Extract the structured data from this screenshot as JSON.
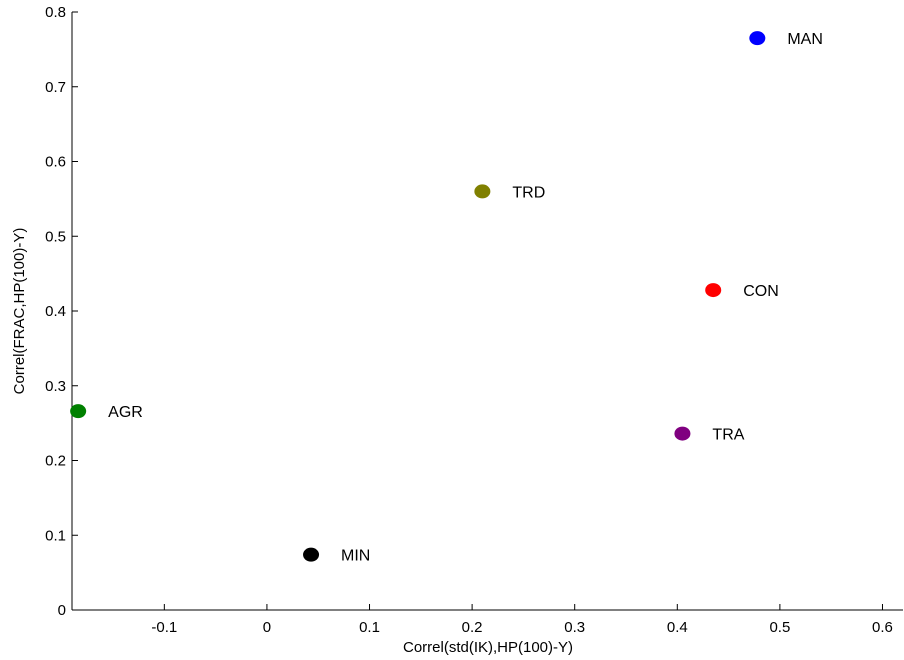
{
  "chart_data": {
    "type": "scatter",
    "title": "",
    "xlabel": "Correl(std(IK),HP(100)-Y)",
    "ylabel": "Correl(FRAC,HP(100)-Y)",
    "xlim": [
      -0.19,
      0.62
    ],
    "ylim": [
      0,
      0.8
    ],
    "xticks": [
      -0.1,
      0,
      0.1,
      0.2,
      0.3,
      0.4,
      0.5,
      0.6
    ],
    "xtick_labels": [
      "-0.1",
      "0",
      "0.1",
      "0.2",
      "0.3",
      "0.4",
      "0.5",
      "0.6"
    ],
    "yticks": [
      0,
      0.1,
      0.2,
      0.3,
      0.4,
      0.5,
      0.6,
      0.7,
      0.8
    ],
    "ytick_labels": [
      "0",
      "0.1",
      "0.2",
      "0.3",
      "0.4",
      "0.5",
      "0.6",
      "0.7",
      "0.8"
    ],
    "grid": false,
    "points": [
      {
        "label": "MAN",
        "x": 0.478,
        "y": 0.765,
        "color": "#0000ff"
      },
      {
        "label": "TRD",
        "x": 0.21,
        "y": 0.56,
        "color": "#808000"
      },
      {
        "label": "CON",
        "x": 0.435,
        "y": 0.428,
        "color": "#ff0000"
      },
      {
        "label": "AGR",
        "x": -0.184,
        "y": 0.266,
        "color": "#008000"
      },
      {
        "label": "TRA",
        "x": 0.405,
        "y": 0.236,
        "color": "#800080"
      },
      {
        "label": "MIN",
        "x": 0.043,
        "y": 0.074,
        "color": "#000000"
      }
    ]
  }
}
